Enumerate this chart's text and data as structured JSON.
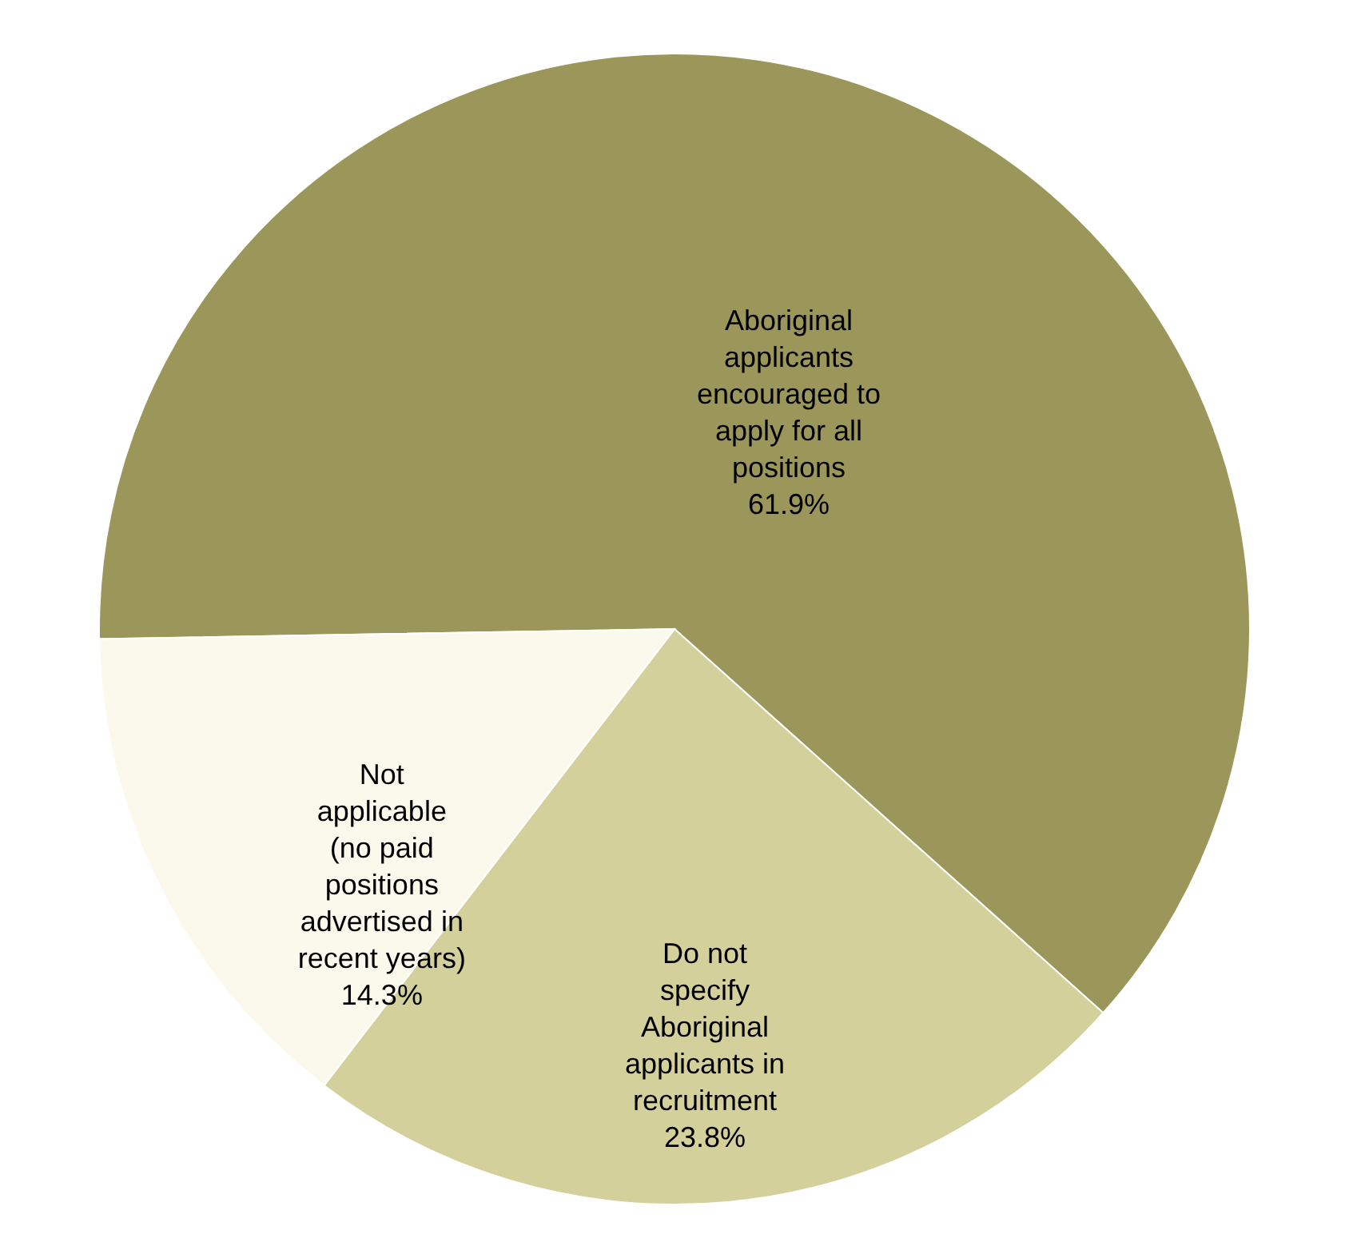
{
  "chart_data": {
    "type": "pie",
    "categories": [
      "Aboriginal applicants encouraged to apply for all positions",
      "Do not specify Aboriginal applicants in recruitment",
      "Not applicable (no paid positions advertised in recent years)"
    ],
    "values": [
      61.9,
      23.8,
      14.3
    ],
    "colors": [
      "#9b9659",
      "#d4d09b",
      "#fbf9ec"
    ],
    "value_labels": [
      "61.9%",
      "23.8%",
      "14.3%"
    ]
  }
}
